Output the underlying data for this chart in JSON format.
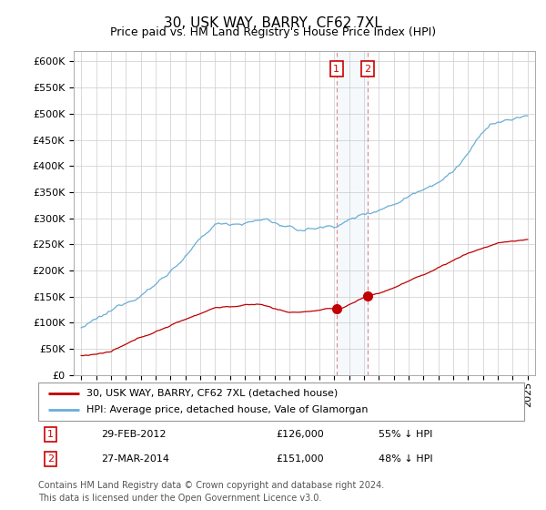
{
  "title": "30, USK WAY, BARRY, CF62 7XL",
  "subtitle": "Price paid vs. HM Land Registry's House Price Index (HPI)",
  "ytick_values": [
    0,
    50000,
    100000,
    150000,
    200000,
    250000,
    300000,
    350000,
    400000,
    450000,
    500000,
    550000,
    600000
  ],
  "hpi_color": "#6aaed6",
  "price_color": "#c00000",
  "marker_color": "#c00000",
  "sale1_date": "29-FEB-2012",
  "sale1_price": 126000,
  "sale2_date": "27-MAR-2014",
  "sale2_price": 151000,
  "sale1_note": "55% ↓ HPI",
  "sale2_note": "48% ↓ HPI",
  "sale1_year": 2012.16,
  "sale2_year": 2014.24,
  "legend_line1": "30, USK WAY, BARRY, CF62 7XL (detached house)",
  "legend_line2": "HPI: Average price, detached house, Vale of Glamorgan",
  "footnote": "Contains HM Land Registry data © Crown copyright and database right 2024.\nThis data is licensed under the Open Government Licence v3.0.",
  "xmin": 1994.5,
  "xmax": 2025.5,
  "ymin": 0,
  "ymax": 620000,
  "title_fontsize": 11,
  "subtitle_fontsize": 9,
  "tick_fontsize": 8,
  "legend_fontsize": 8,
  "footnote_fontsize": 7,
  "background_color": "#ffffff",
  "grid_color": "#cccccc",
  "axborder_color": "#aaaaaa"
}
